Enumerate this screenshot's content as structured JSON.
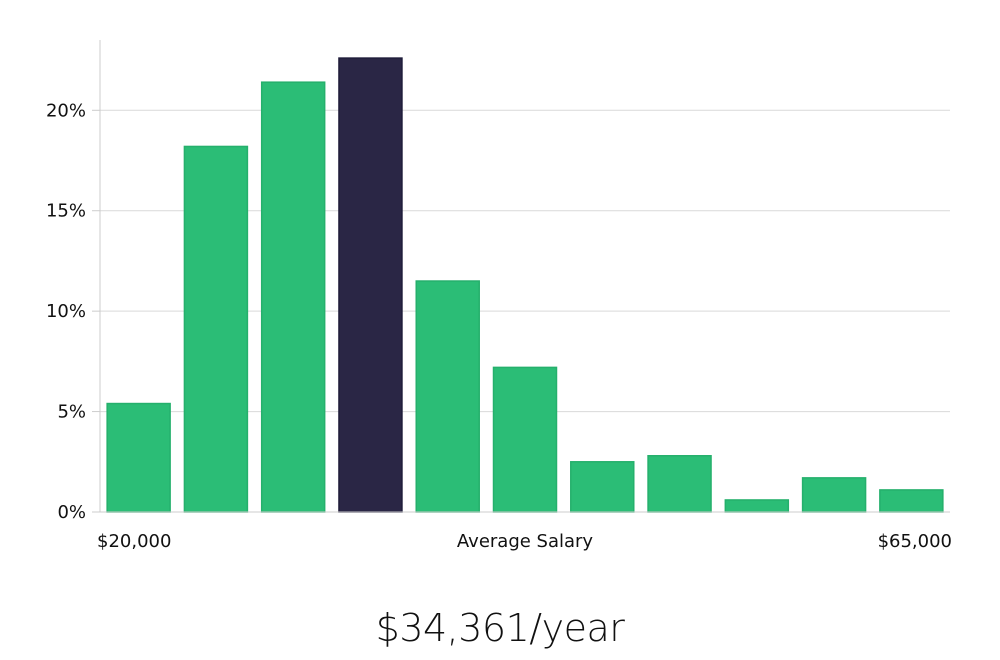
{
  "chart_data": {
    "type": "bar",
    "categories": [
      "1",
      "2",
      "3",
      "4",
      "5",
      "6",
      "7",
      "8",
      "9",
      "10",
      "11"
    ],
    "values": [
      5.4,
      18.2,
      21.4,
      22.6,
      11.5,
      7.2,
      2.5,
      2.8,
      0.6,
      1.7,
      1.1
    ],
    "highlight_index": 3,
    "colors": {
      "bar": "#2bbd76",
      "highlight": "#2a2645",
      "grid": "#d9d9d9",
      "axis": "#cccccc"
    },
    "ylim": [
      0,
      23.5
    ],
    "yticks": [
      0,
      5,
      10,
      15,
      20
    ],
    "ytick_labels": [
      "0%",
      "5%",
      "10%",
      "15%",
      "20%"
    ],
    "x_start_label": "$20,000",
    "xlabel": "Average Salary",
    "x_end_label": "$65,000",
    "grid": "horizontal"
  },
  "summary": {
    "salary": "$34,361/year"
  }
}
